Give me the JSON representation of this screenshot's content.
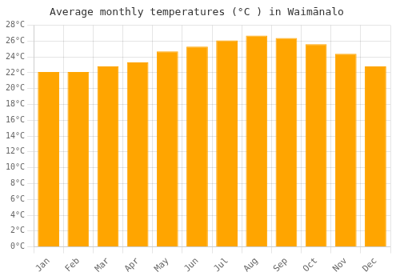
{
  "chart_data": {
    "type": "bar",
    "title": "Average monthly temperatures (°C ) in Waimānalo",
    "categories": [
      "Jan",
      "Feb",
      "Mar",
      "Apr",
      "May",
      "Jun",
      "Jul",
      "Aug",
      "Sep",
      "Oct",
      "Nov",
      "Dec"
    ],
    "values": [
      22.1,
      22.1,
      22.8,
      23.3,
      24.7,
      25.3,
      26.1,
      26.7,
      26.4,
      25.6,
      24.4,
      22.8
    ],
    "color": "#FFA500",
    "ylim": [
      0,
      28
    ],
    "yticks": [
      {
        "value": 0,
        "label": "0°C"
      },
      {
        "value": 2,
        "label": "2°C"
      },
      {
        "value": 4,
        "label": "4°C"
      },
      {
        "value": 6,
        "label": "6°C"
      },
      {
        "value": 8,
        "label": "8°C"
      },
      {
        "value": 10,
        "label": "10°C"
      },
      {
        "value": 12,
        "label": "12°C"
      },
      {
        "value": 14,
        "label": "14°C"
      },
      {
        "value": 16,
        "label": "16°C"
      },
      {
        "value": 18,
        "label": "18°C"
      },
      {
        "value": 20,
        "label": "20°C"
      },
      {
        "value": 22,
        "label": "22°C"
      },
      {
        "value": 24,
        "label": "24°C"
      },
      {
        "value": 26,
        "label": "26°C"
      },
      {
        "value": 28,
        "label": "28°C"
      }
    ],
    "grid": true
  }
}
